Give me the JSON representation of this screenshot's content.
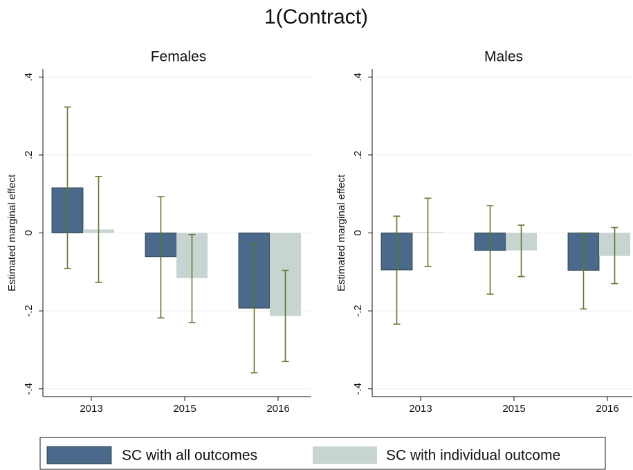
{
  "title": "1(Contract)",
  "chart_data": [
    {
      "type": "bar",
      "title": "Females",
      "ylabel": "Estimated marginal effect",
      "categories": [
        "2013",
        "2015",
        "2016"
      ],
      "series": [
        {
          "name": "SC with all outcomes",
          "color": "#4a698b",
          "values": [
            0.116,
            -0.061,
            -0.193
          ],
          "lower": [
            -0.091,
            -0.218,
            -0.359
          ],
          "upper": [
            0.323,
            0.093,
            -0.027
          ]
        },
        {
          "name": "SC with individual outcome",
          "color": "#c8d4d1",
          "values": [
            0.009,
            -0.116,
            -0.213
          ],
          "lower": [
            -0.127,
            -0.23,
            -0.33
          ],
          "upper": [
            0.145,
            -0.004,
            -0.096
          ]
        }
      ],
      "errorbar_color": "#5b7a2c",
      "ylim": [
        -0.42,
        0.42
      ],
      "yticks": [
        {
          "value": -0.4,
          "label": "-.4"
        },
        {
          "value": -0.2,
          "label": "-.2"
        },
        0,
        {
          "value": 0.2,
          "label": ".2"
        },
        {
          "value": 0.4,
          "label": ".4"
        }
      ],
      "grid": true
    },
    {
      "type": "bar",
      "title": "Males",
      "ylabel": "Estimated marginal effect",
      "categories": [
        "2013",
        "2015",
        "2016"
      ],
      "series": [
        {
          "name": "SC with all outcomes",
          "color": "#4a698b",
          "values": [
            -0.095,
            -0.045,
            -0.096
          ],
          "lower": [
            -0.234,
            -0.157,
            -0.195
          ],
          "upper": [
            0.043,
            0.07,
            0
          ]
        },
        {
          "name": "SC with individual outcome",
          "color": "#c8d4d1",
          "values": [
            0.002,
            -0.045,
            -0.059
          ],
          "lower": [
            -0.086,
            -0.112,
            -0.13
          ],
          "upper": [
            0.089,
            0.02,
            0.014
          ]
        }
      ],
      "errorbar_color": "#5b7a2c",
      "ylim": [
        -0.42,
        0.42
      ],
      "yticks": [
        {
          "value": -0.4,
          "label": "-.4"
        },
        {
          "value": -0.2,
          "label": "-.2"
        },
        0,
        {
          "value": 0.2,
          "label": ".2"
        },
        {
          "value": 0.4,
          "label": ".4"
        }
      ],
      "grid": true
    }
  ]
}
